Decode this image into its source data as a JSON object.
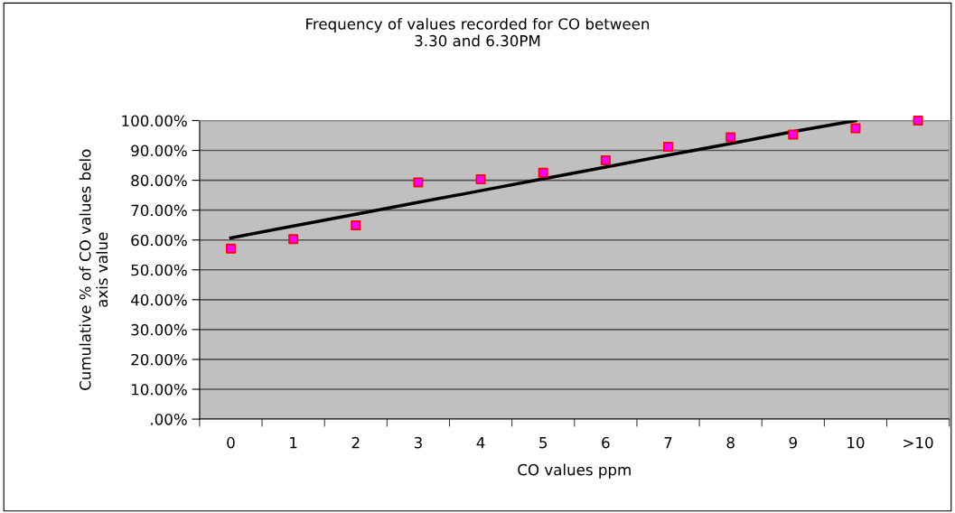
{
  "chart_data": {
    "type": "scatter",
    "title": "Frequency of values recorded for CO between\n3.30 and 6.30PM",
    "xlabel": "CO values ppm",
    "ylabel": "Cumulative % of CO values belo\naxis value",
    "categories": [
      "0",
      "1",
      "2",
      "3",
      "4",
      "5",
      "6",
      "7",
      "8",
      "9",
      "10",
      ">10"
    ],
    "series": [
      {
        "color": "#ff00ff",
        "marker": "square",
        "values": [
          57.1,
          60.3,
          64.9,
          79.3,
          80.3,
          82.5,
          86.7,
          91.2,
          94.4,
          95.3,
          97.4,
          100
        ]
      },
      {
        "type": "line",
        "color": "#000000",
        "marker": "none",
        "line_style": "solid",
        "values": [
          60.7,
          64.7,
          68.6,
          72.6,
          76.5,
          80.5,
          84.4,
          88.4,
          92.3,
          96.3,
          100,
          null
        ]
      }
    ],
    "ylim": [
      0,
      100
    ],
    "yticks": [
      {
        "value": 0,
        "label": ".00%"
      },
      {
        "value": 10,
        "label": "10.00%"
      },
      {
        "value": 20,
        "label": "20.00%"
      },
      {
        "value": 30,
        "label": "30.00%"
      },
      {
        "value": 40,
        "label": "40.00%"
      },
      {
        "value": 50,
        "label": "50.00%"
      },
      {
        "value": 60,
        "label": "60.00%"
      },
      {
        "value": 70,
        "label": "70.00%"
      },
      {
        "value": 80,
        "label": "80.00%"
      },
      {
        "value": 90,
        "label": "90.00%"
      },
      {
        "value": 100,
        "label": "100.00%"
      }
    ],
    "grid": "y",
    "legend": false
  }
}
